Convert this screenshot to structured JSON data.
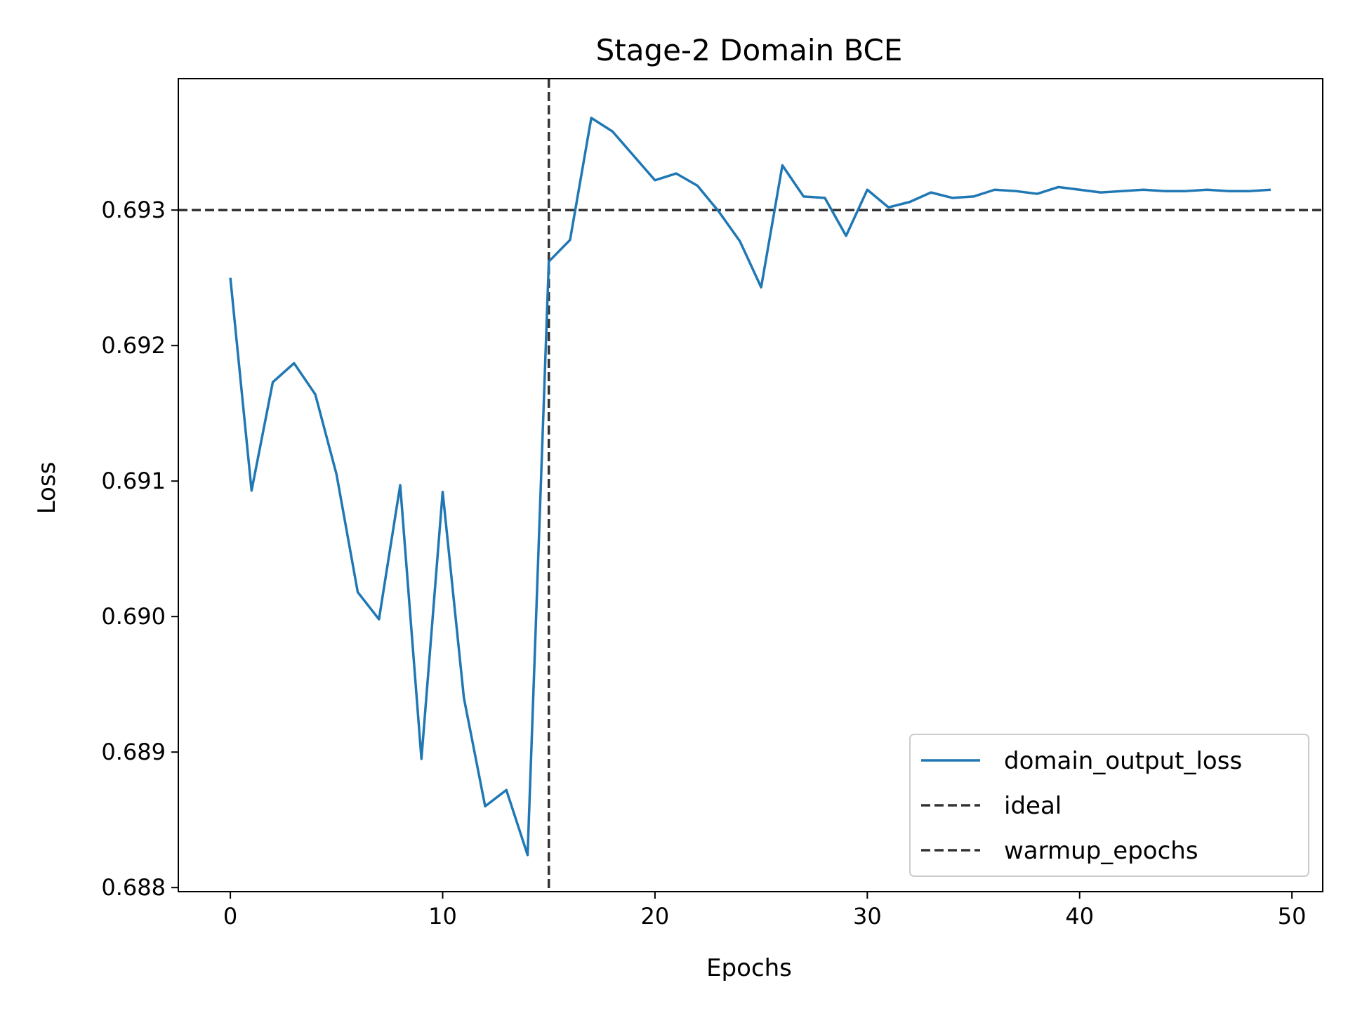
{
  "chart_data": {
    "type": "line",
    "title": "Stage-2 Domain BCE",
    "xlabel": "Epochs",
    "ylabel": "Loss",
    "xlim": [
      -2.45,
      51.45
    ],
    "ylim": [
      0.68797,
      0.69397
    ],
    "x_ticks": [
      0,
      10,
      20,
      30,
      40,
      50
    ],
    "y_ticks": [
      0.688,
      0.689,
      0.69,
      0.691,
      0.692,
      0.693
    ],
    "y_tick_labels": [
      "0.688",
      "0.689",
      "0.690",
      "0.691",
      "0.692",
      "0.693"
    ],
    "grid": false,
    "legend_position": "lower-right",
    "series": [
      {
        "name": "domain_output_loss",
        "color": "#1f77b4",
        "style": "solid",
        "x": [
          0,
          1,
          2,
          3,
          4,
          5,
          6,
          7,
          8,
          9,
          10,
          11,
          12,
          13,
          14,
          15,
          16,
          17,
          18,
          19,
          20,
          21,
          22,
          23,
          24,
          25,
          26,
          27,
          28,
          29,
          30,
          31,
          32,
          33,
          34,
          35,
          36,
          37,
          38,
          39,
          40,
          41,
          42,
          43,
          44,
          45,
          46,
          47,
          48,
          49
        ],
        "values": [
          0.6925,
          0.69093,
          0.69173,
          0.69187,
          0.69164,
          0.69105,
          0.69018,
          0.68998,
          0.69097,
          0.68895,
          0.69092,
          0.6894,
          0.6886,
          0.68872,
          0.68824,
          0.69262,
          0.69278,
          0.69368,
          0.69358,
          0.6934,
          0.69322,
          0.69327,
          0.69318,
          0.69299,
          0.69277,
          0.69243,
          0.69333,
          0.6931,
          0.69309,
          0.69281,
          0.69315,
          0.69302,
          0.69306,
          0.69313,
          0.69309,
          0.6931,
          0.69315,
          0.69314,
          0.69312,
          0.69317,
          0.69315,
          0.69313,
          0.69314,
          0.69315,
          0.69314,
          0.69314,
          0.69315,
          0.69314,
          0.69314,
          0.69315
        ]
      }
    ],
    "reference_lines": [
      {
        "name": "ideal",
        "orientation": "horizontal",
        "value": 0.693,
        "color": "#333333",
        "style": "dashed"
      },
      {
        "name": "warmup_epochs",
        "orientation": "vertical",
        "value": 15,
        "color": "#333333",
        "style": "dashed"
      }
    ]
  }
}
